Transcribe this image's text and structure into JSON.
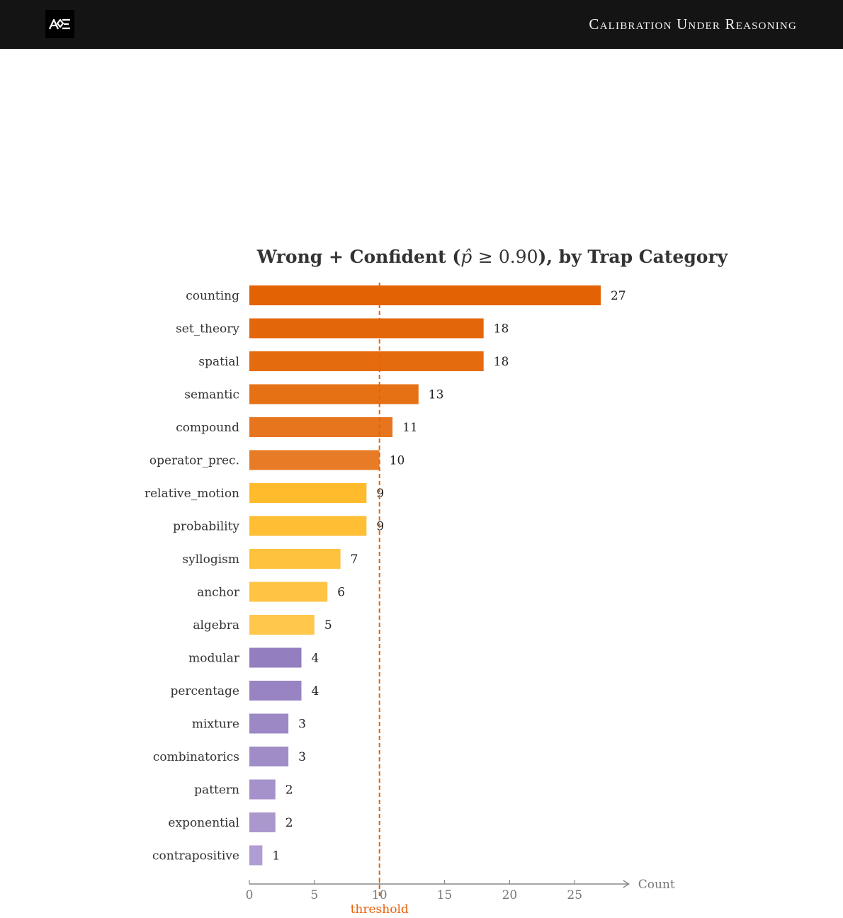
{
  "header": {
    "title": "Calibration Under Reasoning",
    "logo_text": "AQE"
  },
  "chart_data": {
    "type": "bar",
    "orientation": "horizontal",
    "title": "Wrong + Confident (p̂ ≥ 0.90), by Trap Category",
    "xlabel": "Count",
    "ylabel": "",
    "xlim": [
      0,
      29
    ],
    "xticks": [
      0,
      5,
      10,
      15,
      20,
      25
    ],
    "threshold": {
      "value": 10,
      "label": "threshold",
      "color": "#e8610a"
    },
    "categories": [
      "counting",
      "set_theory",
      "spatial",
      "semantic",
      "compound",
      "operator_prec.",
      "relative_motion",
      "probability",
      "syllogism",
      "anchor",
      "algebra",
      "modular",
      "percentage",
      "mixture",
      "combinatorics",
      "pattern",
      "exponential",
      "contrapositive"
    ],
    "values": [
      27,
      18,
      18,
      13,
      11,
      10,
      9,
      9,
      7,
      6,
      5,
      4,
      4,
      3,
      3,
      2,
      2,
      1
    ],
    "colors": [
      "#e36203",
      "#e4660a",
      "#e56b0f",
      "#e67115",
      "#e7751e",
      "#e87b26",
      "#ffbb2c",
      "#ffbe34",
      "#ffc23c",
      "#ffc444",
      "#ffc74c",
      "#937ebf",
      "#9884c2",
      "#9c88c4",
      "#a08dc7",
      "#a592ca",
      "#aa98cd",
      "#ae9dd0"
    ],
    "grid": false,
    "legend": "none"
  }
}
